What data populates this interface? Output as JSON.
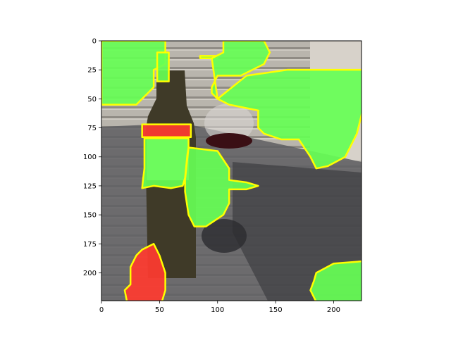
{
  "chart_data": {
    "type": "heatmap",
    "subtype": "image-with-segmentation-overlay",
    "title": "",
    "xlabel": "",
    "ylabel": "",
    "image_size": [
      224,
      224
    ],
    "xlim": [
      0,
      224
    ],
    "ylim": [
      224,
      0
    ],
    "y_inverted": true,
    "grid": false,
    "x_ticks": [
      0,
      50,
      100,
      150,
      200
    ],
    "y_ticks": [
      0,
      25,
      50,
      75,
      100,
      125,
      150,
      175,
      200
    ],
    "x_tick_labels": [
      "0",
      "50",
      "100",
      "150",
      "200"
    ],
    "y_tick_labels": [
      "0",
      "25",
      "50",
      "75",
      "100",
      "125",
      "150",
      "175",
      "200"
    ],
    "colors": {
      "overlay_green": "#66ff55",
      "overlay_red": "#ff3b30",
      "contour_yellow": "#ffff00",
      "siding": "#b9b5ad",
      "glass_table": "#5e5e62",
      "bottle": "#3f3a28",
      "wine": "#3a0f14",
      "label_paper": "#b8c7bd",
      "frame": "#000000"
    },
    "regions": [
      {
        "class": "green",
        "polygon": [
          [
            0,
            0
          ],
          [
            55,
            0
          ],
          [
            55,
            20
          ],
          [
            45,
            25
          ],
          [
            45,
            40
          ],
          [
            35,
            50
          ],
          [
            30,
            55
          ],
          [
            0,
            55
          ]
        ]
      },
      {
        "class": "green",
        "polygon": [
          [
            48,
            10
          ],
          [
            58,
            10
          ],
          [
            58,
            35
          ],
          [
            48,
            35
          ]
        ]
      },
      {
        "class": "green",
        "polygon": [
          [
            85,
            13
          ],
          [
            100,
            13
          ],
          [
            100,
            15
          ],
          [
            85,
            15
          ]
        ]
      },
      {
        "class": "green",
        "polygon": [
          [
            95,
            15
          ],
          [
            105,
            10
          ],
          [
            105,
            0
          ],
          [
            140,
            0
          ],
          [
            145,
            10
          ],
          [
            140,
            20
          ],
          [
            120,
            30
          ],
          [
            100,
            30
          ],
          [
            95,
            40
          ],
          [
            95,
            45
          ],
          [
            100,
            50
          ]
        ]
      },
      {
        "class": "green",
        "polygon": [
          [
            100,
            50
          ],
          [
            125,
            30
          ],
          [
            160,
            25
          ],
          [
            225,
            25
          ],
          [
            225,
            60
          ],
          [
            220,
            80
          ],
          [
            210,
            100
          ],
          [
            195,
            108
          ],
          [
            185,
            110
          ],
          [
            180,
            100
          ],
          [
            170,
            85
          ],
          [
            155,
            85
          ],
          [
            140,
            80
          ],
          [
            135,
            75
          ],
          [
            135,
            60
          ],
          [
            110,
            55
          ],
          [
            100,
            50
          ]
        ]
      },
      {
        "class": "red",
        "polygon": [
          [
            35,
            72
          ],
          [
            77,
            72
          ],
          [
            77,
            83
          ],
          [
            35,
            83
          ]
        ]
      },
      {
        "class": "green",
        "polygon": [
          [
            37,
            84
          ],
          [
            75,
            84
          ],
          [
            75,
            92
          ],
          [
            74,
            98
          ],
          [
            72,
            118
          ],
          [
            70,
            125
          ],
          [
            60,
            127
          ],
          [
            45,
            125
          ],
          [
            35,
            127
          ],
          [
            36,
            118
          ],
          [
            37,
            110
          ]
        ]
      },
      {
        "class": "green",
        "polygon": [
          [
            75,
            92
          ],
          [
            100,
            95
          ],
          [
            110,
            110
          ],
          [
            110,
            120
          ],
          [
            125,
            122
          ],
          [
            135,
            125
          ],
          [
            125,
            128
          ],
          [
            110,
            128
          ],
          [
            110,
            140
          ],
          [
            105,
            150
          ],
          [
            90,
            160
          ],
          [
            80,
            160
          ],
          [
            75,
            150
          ],
          [
            72,
            130
          ],
          [
            72,
            120
          ]
        ]
      },
      {
        "class": "red",
        "polygon": [
          [
            35,
            180
          ],
          [
            45,
            175
          ],
          [
            50,
            185
          ],
          [
            55,
            200
          ],
          [
            55,
            215
          ],
          [
            52,
            225
          ],
          [
            22,
            225
          ],
          [
            20,
            215
          ],
          [
            25,
            210
          ],
          [
            25,
            195
          ],
          [
            30,
            185
          ]
        ]
      },
      {
        "class": "green",
        "polygon": [
          [
            185,
            200
          ],
          [
            200,
            192
          ],
          [
            225,
            190
          ],
          [
            225,
            225
          ],
          [
            185,
            225
          ],
          [
            180,
            215
          ],
          [
            183,
            207
          ]
        ]
      }
    ]
  }
}
